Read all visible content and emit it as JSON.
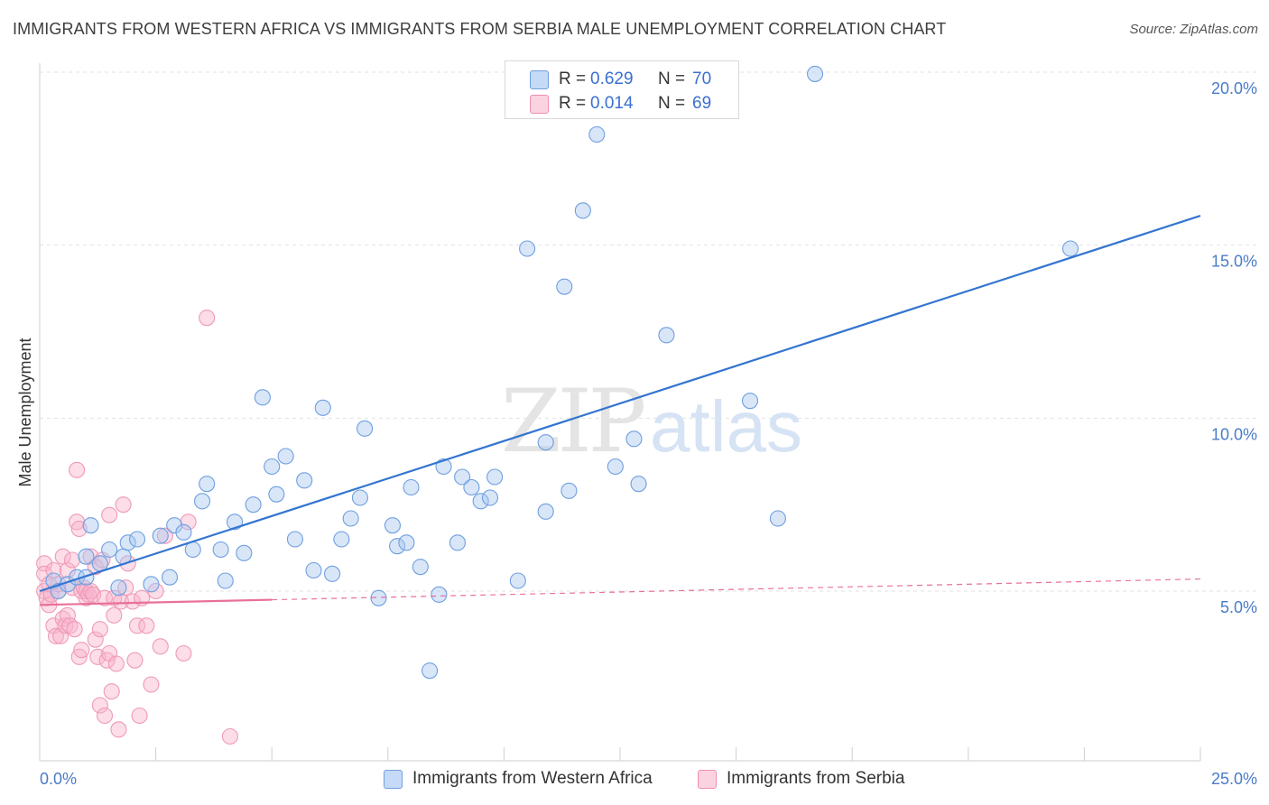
{
  "title": "IMMIGRANTS FROM WESTERN AFRICA VS IMMIGRANTS FROM SERBIA MALE UNEMPLOYMENT CORRELATION CHART",
  "source": "Source: ZipAtlas.com",
  "watermark": {
    "zip": "ZIP",
    "atlas": "atlas"
  },
  "legend": [
    {
      "r_label": "R =",
      "r_value": "0.629",
      "n_label": "N =",
      "n_value": "70",
      "color": "#a8c8f0",
      "border": "#6f9fe0"
    },
    {
      "r_label": "R =",
      "r_value": "0.014",
      "n_label": "N =",
      "n_value": "69",
      "color": "#f8bcd0",
      "border": "#ee8fb0"
    }
  ],
  "bottom_legend": [
    {
      "label": "Immigrants from Western Africa",
      "color": "#a8c8f0",
      "border": "#6f9fe0"
    },
    {
      "label": "Immigrants from Serbia",
      "color": "#f8bcd0",
      "border": "#ee8fb0"
    }
  ],
  "chart_data": {
    "type": "scatter",
    "title": "IMMIGRANTS FROM WESTERN AFRICA VS IMMIGRANTS FROM SERBIA MALE UNEMPLOYMENT CORRELATION CHART",
    "xlabel": "",
    "ylabel": "Male Unemployment",
    "xlim": [
      0,
      25
    ],
    "ylim": [
      0.5,
      20.5
    ],
    "x_tick_labels": [
      {
        "value": 0,
        "label": "0.0%"
      },
      {
        "value": 25,
        "label": "25.0%"
      }
    ],
    "x_minor_ticks": [
      0,
      2.5,
      5,
      7.5,
      10,
      12.5,
      15,
      17.5,
      20,
      22.5,
      25
    ],
    "y_ticks": [
      {
        "value": 5,
        "label": "5.0%"
      },
      {
        "value": 10,
        "label": "10.0%"
      },
      {
        "value": 15,
        "label": "15.0%"
      },
      {
        "value": 20,
        "label": "20.0%"
      }
    ],
    "grid": true,
    "legend_position": "top-center",
    "series": [
      {
        "name": "Immigrants from Western Africa",
        "color": "#7aa8e6",
        "trend": {
          "x": [
            0,
            25
          ],
          "y": [
            5.0,
            15.85
          ],
          "style": "solid",
          "color": "#3375d0"
        },
        "points": [
          [
            0.3,
            5.3
          ],
          [
            0.4,
            5.0
          ],
          [
            0.6,
            5.2
          ],
          [
            0.8,
            5.4
          ],
          [
            1.0,
            6.0
          ],
          [
            1.1,
            6.9
          ],
          [
            1.3,
            5.8
          ],
          [
            1.5,
            6.2
          ],
          [
            1.7,
            5.1
          ],
          [
            1.8,
            6.0
          ],
          [
            1.9,
            6.4
          ],
          [
            2.1,
            6.5
          ],
          [
            2.4,
            5.2
          ],
          [
            2.6,
            6.6
          ],
          [
            2.8,
            5.4
          ],
          [
            2.9,
            6.9
          ],
          [
            3.1,
            6.7
          ],
          [
            3.3,
            6.2
          ],
          [
            3.5,
            7.6
          ],
          [
            3.6,
            8.1
          ],
          [
            3.9,
            6.2
          ],
          [
            4.0,
            5.3
          ],
          [
            4.2,
            7.0
          ],
          [
            4.4,
            6.1
          ],
          [
            4.6,
            7.5
          ],
          [
            4.8,
            10.6
          ],
          [
            5.0,
            8.6
          ],
          [
            5.1,
            7.8
          ],
          [
            5.3,
            8.9
          ],
          [
            5.5,
            6.5
          ],
          [
            5.7,
            8.2
          ],
          [
            5.9,
            5.6
          ],
          [
            6.1,
            10.3
          ],
          [
            6.3,
            5.5
          ],
          [
            6.5,
            6.5
          ],
          [
            6.7,
            7.1
          ],
          [
            6.9,
            7.7
          ],
          [
            7.0,
            9.7
          ],
          [
            7.3,
            4.8
          ],
          [
            7.6,
            6.9
          ],
          [
            7.7,
            6.3
          ],
          [
            7.9,
            6.4
          ],
          [
            8.0,
            8.0
          ],
          [
            8.2,
            5.7
          ],
          [
            8.4,
            2.7
          ],
          [
            8.6,
            4.9
          ],
          [
            8.7,
            8.6
          ],
          [
            9.0,
            6.4
          ],
          [
            9.1,
            8.3
          ],
          [
            9.3,
            8.0
          ],
          [
            9.5,
            7.6
          ],
          [
            9.7,
            7.7
          ],
          [
            9.8,
            8.3
          ],
          [
            10.3,
            5.3
          ],
          [
            10.5,
            14.9
          ],
          [
            10.9,
            7.3
          ],
          [
            10.9,
            9.3
          ],
          [
            11.3,
            13.8
          ],
          [
            11.4,
            7.9
          ],
          [
            11.7,
            16.0
          ],
          [
            12.0,
            18.2
          ],
          [
            12.4,
            8.6
          ],
          [
            12.8,
            9.4
          ],
          [
            12.9,
            8.1
          ],
          [
            13.5,
            12.4
          ],
          [
            15.3,
            10.5
          ],
          [
            15.9,
            7.1
          ],
          [
            16.7,
            19.95
          ],
          [
            22.2,
            14.9
          ],
          [
            1.0,
            5.4
          ]
        ]
      },
      {
        "name": "Immigrants from Serbia",
        "color": "#f3a0bd",
        "trend": {
          "x": [
            0,
            5
          ],
          "y": [
            4.6,
            4.75
          ],
          "style": "solid",
          "color": "#e8709a",
          "extension": {
            "x": [
              5,
              25
            ],
            "y": [
              4.75,
              5.35
            ],
            "style": "dashed"
          }
        },
        "points": [
          [
            0.1,
            5.8
          ],
          [
            0.1,
            5.0
          ],
          [
            0.1,
            5.5
          ],
          [
            0.15,
            4.8
          ],
          [
            0.2,
            4.6
          ],
          [
            0.2,
            5.2
          ],
          [
            0.25,
            4.9
          ],
          [
            0.3,
            4.0
          ],
          [
            0.3,
            5.6
          ],
          [
            0.35,
            3.7
          ],
          [
            0.4,
            5.0
          ],
          [
            0.4,
            5.2
          ],
          [
            0.45,
            3.7
          ],
          [
            0.5,
            6.0
          ],
          [
            0.5,
            4.2
          ],
          [
            0.55,
            4.0
          ],
          [
            0.6,
            5.6
          ],
          [
            0.6,
            4.3
          ],
          [
            0.65,
            4.0
          ],
          [
            0.7,
            5.1
          ],
          [
            0.7,
            5.9
          ],
          [
            0.75,
            3.9
          ],
          [
            0.8,
            8.5
          ],
          [
            0.8,
            7.0
          ],
          [
            0.85,
            3.1
          ],
          [
            0.85,
            6.8
          ],
          [
            0.9,
            5.0
          ],
          [
            0.9,
            3.3
          ],
          [
            0.95,
            5.1
          ],
          [
            1.0,
            4.8
          ],
          [
            1.0,
            5.0
          ],
          [
            1.05,
            4.9
          ],
          [
            1.1,
            6.0
          ],
          [
            1.1,
            5.0
          ],
          [
            1.15,
            4.9
          ],
          [
            1.2,
            3.6
          ],
          [
            1.2,
            5.7
          ],
          [
            1.25,
            3.1
          ],
          [
            1.3,
            3.9
          ],
          [
            1.3,
            1.7
          ],
          [
            1.35,
            5.9
          ],
          [
            1.4,
            4.8
          ],
          [
            1.4,
            1.4
          ],
          [
            1.45,
            3.0
          ],
          [
            1.5,
            7.2
          ],
          [
            1.5,
            3.2
          ],
          [
            1.55,
            2.1
          ],
          [
            1.6,
            4.8
          ],
          [
            1.6,
            4.3
          ],
          [
            1.65,
            2.9
          ],
          [
            1.7,
            1.0
          ],
          [
            1.75,
            4.7
          ],
          [
            1.8,
            7.5
          ],
          [
            1.85,
            5.1
          ],
          [
            1.9,
            5.8
          ],
          [
            2.0,
            4.7
          ],
          [
            2.05,
            3.0
          ],
          [
            2.1,
            4.0
          ],
          [
            2.15,
            1.4
          ],
          [
            2.2,
            4.8
          ],
          [
            2.3,
            4.0
          ],
          [
            2.4,
            2.3
          ],
          [
            2.5,
            5.0
          ],
          [
            2.6,
            3.4
          ],
          [
            2.7,
            6.6
          ],
          [
            3.1,
            3.2
          ],
          [
            3.2,
            7.0
          ],
          [
            3.6,
            12.9
          ],
          [
            4.1,
            0.8
          ]
        ]
      }
    ]
  }
}
